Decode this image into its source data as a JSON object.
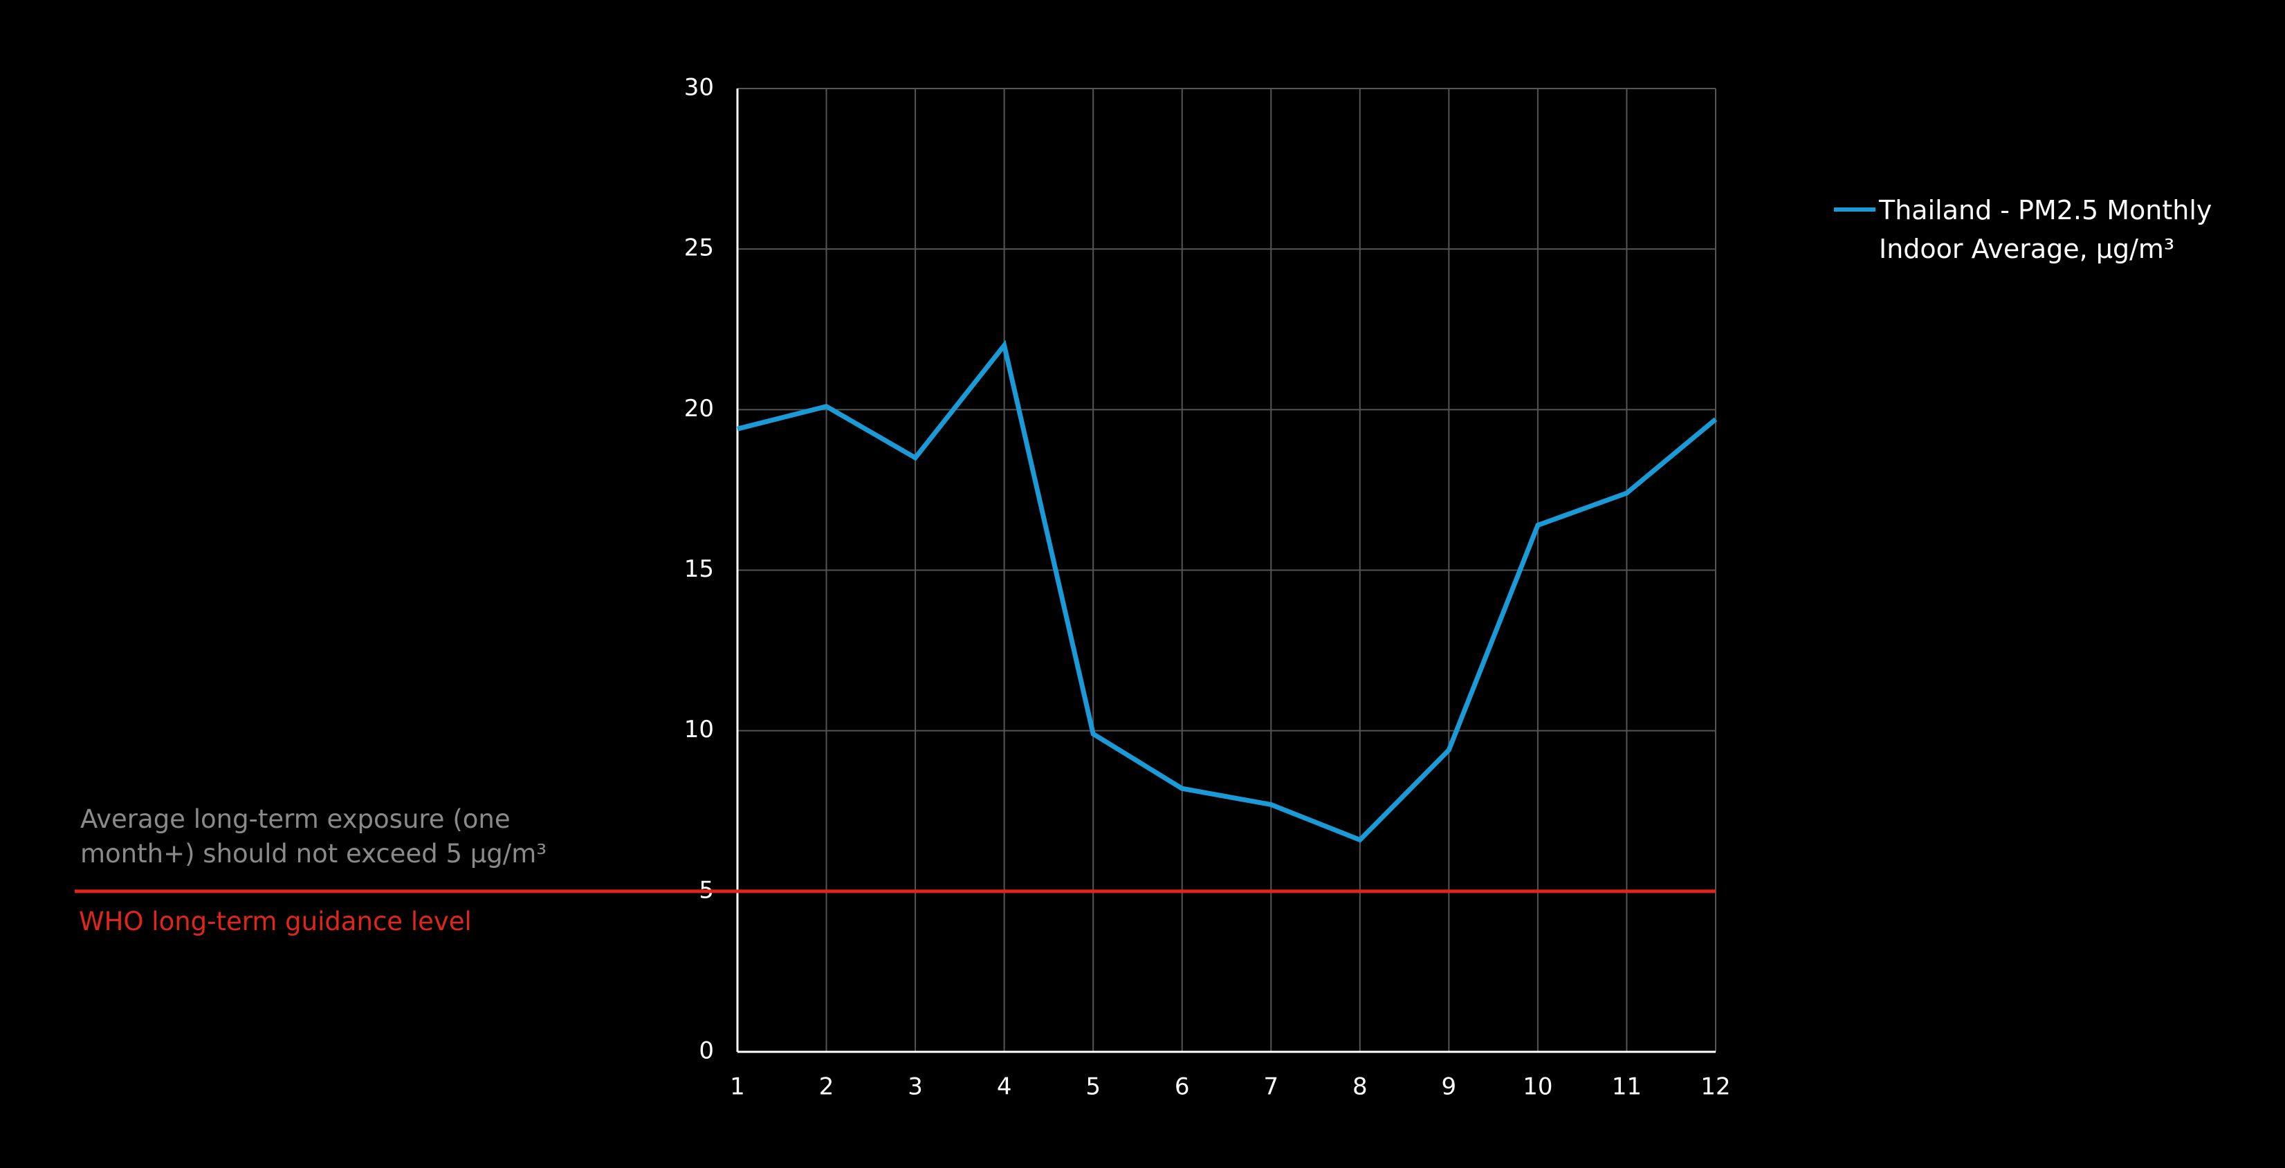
{
  "chart_data": {
    "type": "line",
    "x": [
      1,
      2,
      3,
      4,
      5,
      6,
      7,
      8,
      9,
      10,
      11,
      12
    ],
    "series": [
      {
        "name": "Thailand -  PM2.5 Monthly Indoor Average, μg/m³",
        "color": "#1a9ad6",
        "values": [
          19.4,
          20.1,
          18.5,
          22.0,
          9.9,
          8.2,
          7.7,
          6.6,
          9.4,
          16.4,
          17.4,
          19.7
        ]
      }
    ],
    "xlim": [
      1,
      12
    ],
    "xticks": [
      1,
      2,
      3,
      4,
      5,
      6,
      7,
      8,
      9,
      10,
      11,
      12
    ],
    "ylim": [
      0,
      30
    ],
    "yticks": [
      0,
      5,
      10,
      15,
      20,
      25,
      30
    ],
    "grid": true,
    "legend": "top-right",
    "reference_line": {
      "value": 5,
      "color": "#e0261b",
      "label": "WHO long-term guidance level",
      "annotation": "Average long-term exposure (one month+) should not exceed 5 μg/m³"
    }
  }
}
